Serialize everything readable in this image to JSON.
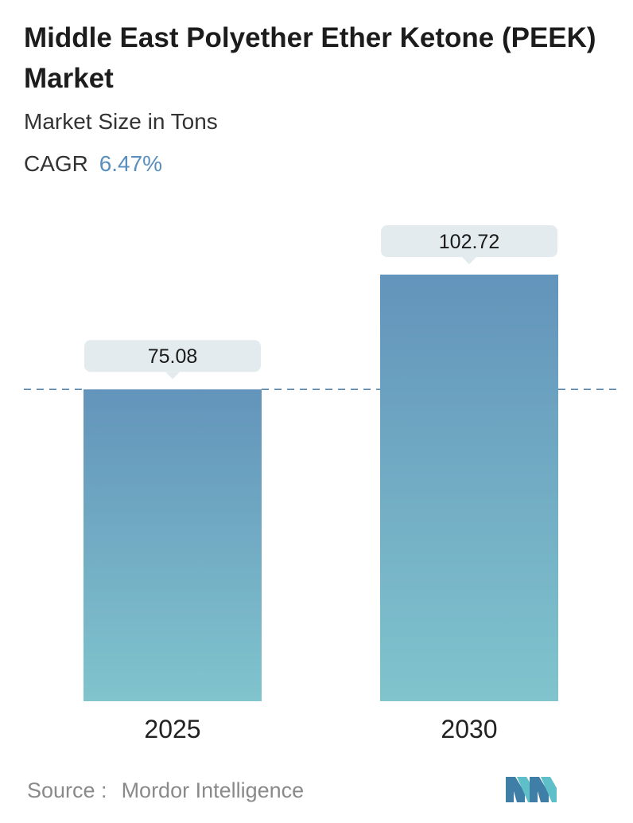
{
  "header": {
    "title": "Middle East Polyether Ether Ketone (PEEK) Market",
    "subtitle": "Market Size in Tons",
    "cagr_label": "CAGR",
    "cagr_value": "6.47%"
  },
  "chart_data": {
    "type": "bar",
    "title": "Middle East Polyether Ether Ketone (PEEK) Market",
    "subtitle": "Market Size in Tons",
    "categories": [
      "2025",
      "2030"
    ],
    "values": [
      75.08,
      102.72
    ],
    "value_labels": [
      "75.08",
      "102.72"
    ],
    "ylabel": "",
    "xlabel": "",
    "ylim": [
      0,
      102.72
    ],
    "reference_line": 75.08,
    "grid": false,
    "legend": "none"
  },
  "colors": {
    "bar_top": "#6394bb",
    "bar_bottom": "#80c4cd",
    "label_bg": "#e3ebee",
    "dash_line": "#5a8ab0",
    "cagr_accent": "#5a8fbd",
    "logo_dark": "#3f7ea6",
    "logo_light": "#5fbfc9"
  },
  "footer": {
    "source_label": "Source :",
    "source_name": "Mordor Intelligence",
    "logo_icon": "mordor-intelligence-logo"
  }
}
